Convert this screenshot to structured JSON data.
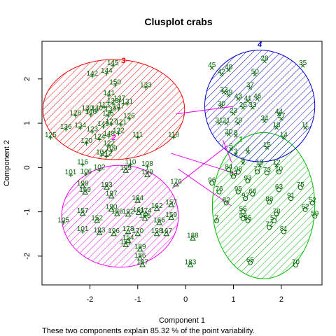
{
  "chart_data": {
    "type": "scatter",
    "title": "Clusplot crabs",
    "xlabel": "Component 1",
    "ylabel": "Component 2",
    "subtitle": "These two components explain 85.32 % of the point variability.",
    "xlim": [
      -3.0,
      2.85
    ],
    "ylim": [
      -2.65,
      2.85
    ],
    "xticks": [
      -2,
      -1,
      0,
      1,
      2
    ],
    "yticks": [
      -2,
      -1,
      0,
      1,
      2
    ],
    "grid": false,
    "clusters": [
      {
        "id": "1",
        "color": "#00bb00",
        "center": [
          1.63,
          -0.86
        ],
        "rx": 1.07,
        "ry": 1.65,
        "label_pos": [
          1.15,
          0.58
        ]
      },
      {
        "id": "2",
        "color": "#ee00ee",
        "center": [
          -1.37,
          -1.1
        ],
        "rx": 1.22,
        "ry": 1.15,
        "label_pos": [
          -1.5,
          0.62
        ]
      },
      {
        "id": "3",
        "color": "#ee0000",
        "center": [
          -1.5,
          1.31
        ],
        "rx": 1.48,
        "ry": 1.13,
        "label_pos": [
          -1.3,
          2.36
        ]
      },
      {
        "id": "4",
        "color": "#0000cc",
        "center": [
          1.55,
          1.39
        ],
        "rx": 1.15,
        "ry": 1.26,
        "label_pos": [
          1.55,
          2.72
        ]
      }
    ],
    "connectors": [
      [
        [
          -0.2,
          1.21
        ],
        [
          1.0,
          1.38
        ]
      ],
      [
        [
          -0.3,
          0.32
        ],
        [
          1.11,
          -0.16
        ]
      ],
      [
        [
          -0.16,
          -0.03
        ],
        [
          0.95,
          -0.86
        ]
      ],
      [
        [
          -0.28,
          -0.47
        ],
        [
          0.88,
          0.5
        ]
      ],
      [
        [
          0.78,
          0.62
        ],
        [
          0.96,
          0.12
        ]
      ]
    ],
    "points": [
      {
        "t": "145",
        "x": -1.52,
        "y": 2.3,
        "s": "plus"
      },
      {
        "t": "142",
        "x": -1.95,
        "y": 2.06,
        "s": "plus"
      },
      {
        "t": "144",
        "x": -1.65,
        "y": 2.12,
        "s": "plus"
      },
      {
        "t": "150",
        "x": -1.47,
        "y": 1.86,
        "s": "plus"
      },
      {
        "t": "133",
        "x": -0.83,
        "y": 1.8,
        "s": "plus"
      },
      {
        "t": "141",
        "x": -1.6,
        "y": 1.62,
        "s": "plus"
      },
      {
        "t": "138",
        "x": -1.52,
        "y": 1.44,
        "s": "plus"
      },
      {
        "t": "137",
        "x": -1.38,
        "y": 1.5,
        "s": "plus"
      },
      {
        "t": "131",
        "x": -1.22,
        "y": 1.43,
        "s": "plus"
      },
      {
        "t": "113",
        "x": -1.7,
        "y": 1.36,
        "s": "plus"
      },
      {
        "t": "139",
        "x": -1.57,
        "y": 1.25,
        "s": "plus"
      },
      {
        "t": "147",
        "x": -1.4,
        "y": 1.32,
        "s": "plus"
      },
      {
        "t": "130",
        "x": -2.05,
        "y": 1.28,
        "s": "plus"
      },
      {
        "t": "140",
        "x": -1.85,
        "y": 1.28,
        "s": "plus"
      },
      {
        "t": "128",
        "x": -2.3,
        "y": 1.17,
        "s": "plus"
      },
      {
        "t": "146",
        "x": -1.98,
        "y": 1.19,
        "s": "plus"
      },
      {
        "t": "135",
        "x": -1.62,
        "y": 1.16,
        "s": "plus"
      },
      {
        "t": "126",
        "x": -1.18,
        "y": 1.1,
        "s": "plus"
      },
      {
        "t": "127",
        "x": -1.55,
        "y": 0.98,
        "s": "plus"
      },
      {
        "t": "121",
        "x": -1.35,
        "y": 0.96,
        "s": "plus"
      },
      {
        "t": "149",
        "x": -1.72,
        "y": 0.92,
        "s": "plus"
      },
      {
        "t": "136",
        "x": -2.5,
        "y": 0.86,
        "s": "plus"
      },
      {
        "t": "134",
        "x": -2.2,
        "y": 0.89,
        "s": "plus"
      },
      {
        "t": "123",
        "x": -1.95,
        "y": 0.8,
        "s": "plus"
      },
      {
        "t": "132",
        "x": -1.4,
        "y": 0.77,
        "s": "plus"
      },
      {
        "t": "148",
        "x": -1.6,
        "y": 0.7,
        "s": "plus"
      },
      {
        "t": "125",
        "x": -2.82,
        "y": 0.67,
        "s": "plus"
      },
      {
        "t": "124",
        "x": -1.8,
        "y": 0.63,
        "s": "plus"
      },
      {
        "t": "111",
        "x": -1.0,
        "y": 0.68,
        "s": "plus"
      },
      {
        "t": "118",
        "x": -0.25,
        "y": 0.68,
        "s": "plus"
      },
      {
        "t": "120",
        "x": -2.07,
        "y": 0.54,
        "s": "plus"
      },
      {
        "t": "122",
        "x": -1.6,
        "y": 0.49,
        "s": "plus"
      },
      {
        "t": "109",
        "x": -1.55,
        "y": 0.37,
        "s": "plus"
      },
      {
        "t": "104",
        "x": -1.75,
        "y": 0.28,
        "s": "plus"
      },
      {
        "t": "112",
        "x": -1.65,
        "y": 0.25,
        "s": "plus"
      },
      {
        "t": "116",
        "x": -2.15,
        "y": 0.06,
        "s": "plus"
      },
      {
        "t": "110",
        "x": -1.15,
        "y": 0.06,
        "s": "plus"
      },
      {
        "t": "108",
        "x": -0.8,
        "y": 0.02,
        "s": "plus"
      },
      {
        "t": "102",
        "x": -1.8,
        "y": -0.06,
        "s": "plus"
      },
      {
        "t": "195",
        "x": -1.25,
        "y": -0.07,
        "s": "tri"
      },
      {
        "t": "101",
        "x": -2.4,
        "y": -0.17,
        "s": "plus"
      },
      {
        "t": "106",
        "x": -2.08,
        "y": -0.15,
        "s": "plus"
      },
      {
        "t": "199",
        "x": -0.8,
        "y": -0.17,
        "s": "tri"
      },
      {
        "t": "176",
        "x": -0.2,
        "y": -0.38,
        "s": "tri"
      },
      {
        "t": "198",
        "x": -2.15,
        "y": -0.42,
        "s": "tri"
      },
      {
        "t": "193",
        "x": -1.65,
        "y": -0.45,
        "s": "tri"
      },
      {
        "t": "169",
        "x": -2.1,
        "y": -0.56,
        "s": "tri"
      },
      {
        "t": "197",
        "x": -1.55,
        "y": -0.65,
        "s": "tri"
      },
      {
        "t": "184",
        "x": -1.0,
        "y": -0.75,
        "s": "tri"
      },
      {
        "t": "157",
        "x": -0.3,
        "y": -0.85,
        "s": "tri"
      },
      {
        "t": "190",
        "x": -1.55,
        "y": -0.95,
        "s": "tri"
      },
      {
        "t": "162",
        "x": -0.6,
        "y": -0.93,
        "s": "tri"
      },
      {
        "t": "161",
        "x": -0.98,
        "y": -1.02,
        "s": "tri"
      },
      {
        "t": "174",
        "x": -0.83,
        "y": -1.04,
        "s": "tri"
      },
      {
        "t": "186",
        "x": -1.43,
        "y": -1.05,
        "s": "tri"
      },
      {
        "t": "192",
        "x": -1.2,
        "y": -1.06,
        "s": "tri"
      },
      {
        "t": "157b",
        "x": -2.15,
        "y": -1.04,
        "s": "tri"
      },
      {
        "t": "159",
        "x": -0.3,
        "y": -1.13,
        "s": "tri"
      },
      {
        "t": "152",
        "x": -1.85,
        "y": -1.2,
        "s": "tri"
      },
      {
        "t": "105",
        "x": -2.55,
        "y": -1.25,
        "s": "plus"
      },
      {
        "t": "185",
        "x": -0.85,
        "y": -1.15,
        "s": "tri"
      },
      {
        "t": "166",
        "x": -0.55,
        "y": -1.25,
        "s": "tri"
      },
      {
        "t": "101b",
        "x": -2.15,
        "y": -1.45,
        "s": "plus"
      },
      {
        "t": "183",
        "x": -1.8,
        "y": -1.48,
        "s": "tri"
      },
      {
        "t": "196",
        "x": -1.5,
        "y": -1.5,
        "s": "tri"
      },
      {
        "t": "178",
        "x": -1.2,
        "y": -1.45,
        "s": "tri"
      },
      {
        "t": "170",
        "x": -1.0,
        "y": -1.5,
        "s": "tri"
      },
      {
        "t": "158",
        "x": -0.6,
        "y": -1.5,
        "s": "tri"
      },
      {
        "t": "167",
        "x": -0.4,
        "y": -1.5,
        "s": "tri"
      },
      {
        "t": "188",
        "x": 0.15,
        "y": -1.6,
        "s": "tri"
      },
      {
        "t": "154",
        "x": -1.2,
        "y": -1.65,
        "s": "tri"
      },
      {
        "t": "151",
        "x": -1.25,
        "y": -1.75,
        "s": "tri"
      },
      {
        "t": "189",
        "x": -0.95,
        "y": -1.85,
        "s": "tri"
      },
      {
        "t": "156",
        "x": -0.95,
        "y": -2.05,
        "s": "tri"
      },
      {
        "t": "187",
        "x": -0.9,
        "y": -2.2,
        "s": "tri"
      },
      {
        "t": "183b",
        "x": 0.1,
        "y": -2.2,
        "s": "tri"
      },
      {
        "t": "45",
        "x": 0.55,
        "y": 2.25,
        "s": "x"
      },
      {
        "t": "48",
        "x": 0.9,
        "y": 2.2,
        "s": "x"
      },
      {
        "t": "42",
        "x": 0.75,
        "y": 2.1,
        "s": "x"
      },
      {
        "t": "50",
        "x": 1.45,
        "y": 2.1,
        "s": "x"
      },
      {
        "t": "28",
        "x": 1.65,
        "y": 2.4,
        "s": "x"
      },
      {
        "t": "35",
        "x": 2.45,
        "y": 2.3,
        "s": "x"
      },
      {
        "t": "37",
        "x": 1.35,
        "y": 1.8,
        "s": "x"
      },
      {
        "t": "32",
        "x": 0.8,
        "y": 1.7,
        "s": "x"
      },
      {
        "t": "39",
        "x": 0.9,
        "y": 1.63,
        "s": "x"
      },
      {
        "t": "43",
        "x": 1.1,
        "y": 1.55,
        "s": "x"
      },
      {
        "t": "41",
        "x": 1.3,
        "y": 1.5,
        "s": "x"
      },
      {
        "t": "46",
        "x": 1.5,
        "y": 1.55,
        "s": "x"
      },
      {
        "t": "30",
        "x": 0.75,
        "y": 1.38,
        "s": "x"
      },
      {
        "t": "26",
        "x": 1.2,
        "y": 1.35,
        "s": "x"
      },
      {
        "t": "33",
        "x": 1.4,
        "y": 1.35,
        "s": "x"
      },
      {
        "t": "23",
        "x": 1.0,
        "y": 1.22,
        "s": "x"
      },
      {
        "t": "44",
        "x": 1.95,
        "y": 1.2,
        "s": "x"
      },
      {
        "t": "27",
        "x": 2.0,
        "y": 1.1,
        "s": "x"
      },
      {
        "t": "34",
        "x": 1.65,
        "y": 1.05,
        "s": "x"
      },
      {
        "t": "31",
        "x": 0.7,
        "y": 1.0,
        "s": "x"
      },
      {
        "t": "21",
        "x": 0.85,
        "y": 1.0,
        "s": "x"
      },
      {
        "t": "29",
        "x": 1.1,
        "y": 1.0,
        "s": "x"
      },
      {
        "t": "18",
        "x": 1.9,
        "y": 0.9,
        "s": "x"
      },
      {
        "t": "11",
        "x": 2.5,
        "y": 0.9,
        "s": "x"
      },
      {
        "t": "20",
        "x": 0.9,
        "y": 0.75,
        "s": "x"
      },
      {
        "t": "8",
        "x": 1.05,
        "y": 0.72,
        "s": "x"
      },
      {
        "t": "14",
        "x": 2.05,
        "y": 0.68,
        "s": "x"
      },
      {
        "t": "15",
        "x": 1.7,
        "y": 0.45,
        "s": "x"
      },
      {
        "t": "5",
        "x": 0.95,
        "y": 0.42,
        "s": "x"
      },
      {
        "t": "3",
        "x": 1.05,
        "y": 0.3,
        "s": "x"
      },
      {
        "t": "4",
        "x": 1.3,
        "y": 0.35,
        "s": "x"
      },
      {
        "t": "9",
        "x": 1.2,
        "y": 0.1,
        "s": "x"
      },
      {
        "t": "19",
        "x": 1.55,
        "y": 0.05,
        "s": "x"
      },
      {
        "t": "12",
        "x": 1.9,
        "y": 0.05,
        "s": "x"
      },
      {
        "t": "98",
        "x": 1.1,
        "y": -0.1,
        "s": "circ"
      },
      {
        "t": "84",
        "x": 0.9,
        "y": -0.05,
        "s": "circ"
      },
      {
        "t": "77",
        "x": 1.5,
        "y": -0.1,
        "s": "circ"
      },
      {
        "t": "73",
        "x": 1.7,
        "y": -0.12,
        "s": "circ"
      },
      {
        "t": "10",
        "x": 1.95,
        "y": -0.1,
        "s": "circ"
      },
      {
        "t": "96",
        "x": 0.55,
        "y": -0.35,
        "s": "circ"
      },
      {
        "t": "83",
        "x": 1.0,
        "y": -0.2,
        "s": "circ"
      },
      {
        "t": "93",
        "x": 1.3,
        "y": -0.3,
        "s": "circ"
      },
      {
        "t": "75",
        "x": 2.4,
        "y": -0.45,
        "s": "circ"
      },
      {
        "t": "76",
        "x": 0.7,
        "y": -0.55,
        "s": "circ"
      },
      {
        "t": "95",
        "x": 1.1,
        "y": -0.55,
        "s": "circ"
      },
      {
        "t": "66",
        "x": 1.4,
        "y": -0.6,
        "s": "circ"
      },
      {
        "t": "63",
        "x": 1.95,
        "y": -0.5,
        "s": "circ"
      },
      {
        "t": "91",
        "x": 2.2,
        "y": -0.7,
        "s": "circ"
      },
      {
        "t": "97",
        "x": 1.25,
        "y": -0.7,
        "s": "circ"
      },
      {
        "t": "82",
        "x": 0.85,
        "y": -0.8,
        "s": "circ"
      },
      {
        "t": "88",
        "x": 1.75,
        "y": -0.78,
        "s": "circ"
      },
      {
        "t": "52",
        "x": 2.65,
        "y": -0.8,
        "s": "circ"
      },
      {
        "t": "62",
        "x": 2.5,
        "y": -0.95,
        "s": "circ"
      },
      {
        "t": "59",
        "x": 2.7,
        "y": -1.1,
        "s": "circ"
      },
      {
        "t": "56",
        "x": 1.2,
        "y": -1.0,
        "s": "circ"
      },
      {
        "t": "58",
        "x": 1.2,
        "y": -1.15,
        "s": "circ"
      },
      {
        "t": "55",
        "x": 1.3,
        "y": -1.2,
        "s": "circ"
      },
      {
        "t": "78",
        "x": 1.9,
        "y": -1.05,
        "s": "circ"
      },
      {
        "t": "57",
        "x": 1.85,
        "y": -1.2,
        "s": "circ"
      },
      {
        "t": "72",
        "x": 1.75,
        "y": -1.35,
        "s": "circ"
      },
      {
        "t": "81",
        "x": 2.05,
        "y": -1.45,
        "s": "circ"
      },
      {
        "t": "7",
        "x": 0.65,
        "y": -1.2,
        "s": "circ"
      },
      {
        "t": "65",
        "x": 1.35,
        "y": -2.15,
        "s": "circ"
      },
      {
        "t": "70",
        "x": 2.3,
        "y": -2.2,
        "s": "circ"
      }
    ]
  }
}
